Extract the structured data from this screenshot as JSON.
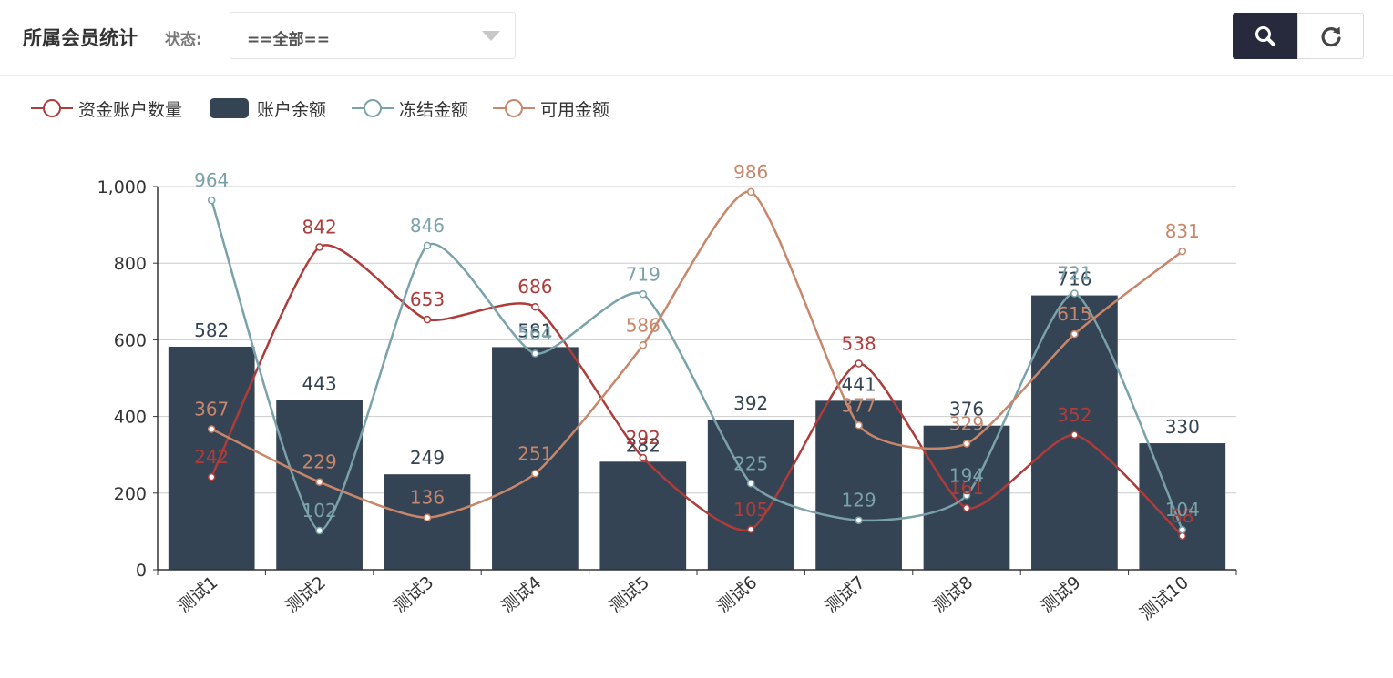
{
  "header": {
    "title": "所属会员统计",
    "status_label": "状态:",
    "status_selected": "==全部=="
  },
  "toolbar": {
    "search_icon": "search-icon",
    "refresh_icon": "refresh-icon"
  },
  "colors": {
    "accounts": "#ad3c3a",
    "balance": "#354454",
    "frozen": "#7aa2ab",
    "available": "#c8866a",
    "axis": "#333333",
    "grid": "#cccccc"
  },
  "chart_data": {
    "type": "bar",
    "categories": [
      "测试1",
      "测试2",
      "测试3",
      "测试4",
      "测试5",
      "测试6",
      "测试7",
      "测试8",
      "测试9",
      "测试10"
    ],
    "ylim": [
      0,
      1000
    ],
    "yticks": [
      0,
      200,
      400,
      600,
      800,
      1000
    ],
    "ytick_labels": [
      "0",
      "200",
      "400",
      "600",
      "800",
      "1,000"
    ],
    "series": [
      {
        "name": "资金账户数量",
        "kind": "line",
        "values": [
          242,
          842,
          653,
          686,
          292,
          105,
          538,
          161,
          352,
          88
        ]
      },
      {
        "name": "账户余额",
        "kind": "bar",
        "values": [
          582,
          443,
          249,
          581,
          282,
          392,
          441,
          376,
          716,
          330
        ]
      },
      {
        "name": "冻结金额",
        "kind": "line",
        "values": [
          964,
          102,
          846,
          564,
          719,
          225,
          129,
          194,
          721,
          104
        ]
      },
      {
        "name": "可用金额",
        "kind": "line",
        "values": [
          367,
          229,
          136,
          251,
          586,
          986,
          377,
          329,
          615,
          831
        ]
      }
    ]
  }
}
